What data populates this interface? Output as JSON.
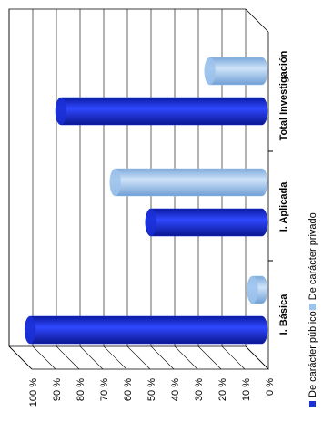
{
  "chart_data": {
    "type": "bar",
    "categories": [
      "I. Básica",
      "I. Aplicada",
      "Total Investigación"
    ],
    "series": [
      {
        "name": "De carácter público",
        "color": "#1a2fd6",
        "values": [
          98,
          47,
          85
        ]
      },
      {
        "name": "De carácter privado",
        "color": "#9cc3ec",
        "values": [
          4,
          62,
          22
        ]
      }
    ],
    "ylim": [
      0,
      100
    ],
    "yticks": [
      {
        "value": 0,
        "label": "0 %"
      },
      {
        "value": 10,
        "label": "10 %"
      },
      {
        "value": 20,
        "label": "20 %"
      },
      {
        "value": 30,
        "label": "30 %"
      },
      {
        "value": 40,
        "label": "40 %"
      },
      {
        "value": 50,
        "label": "50 %"
      },
      {
        "value": 60,
        "label": "60 %"
      },
      {
        "value": 70,
        "label": "70 %"
      },
      {
        "value": 80,
        "label": "80 %"
      },
      {
        "value": 90,
        "label": "90 %"
      },
      {
        "value": 100,
        "label": "100 %"
      }
    ],
    "grid": true
  }
}
